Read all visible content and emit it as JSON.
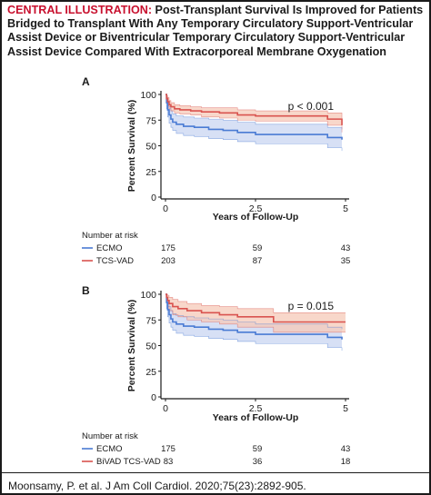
{
  "header": {
    "tag": "CENTRAL ILLUSTRATION:",
    "title": " Post-Transplant Survival Is Improved for Patients Bridged to Transplant With Any Temporary Circulatory Support-Ventricular Assist Device or Biventricular Temporary Circulatory Support-Ventricular Assist Device Compared With Extracorporeal Membrane Oxygenation"
  },
  "citation": "Moonsamy, P. et al. J Am Coll Cardiol. 2020;75(23):2892-905.",
  "colors": {
    "blue": "#4a7bd4",
    "blue_band": "#c9d6f2",
    "red": "#d9534f",
    "red_band": "#f6c9b8",
    "accent": "#c8102e"
  },
  "chart_data": [
    {
      "type": "line",
      "panel": "A",
      "annotation": "p < 0.001",
      "xlabel": "Years of Follow-Up",
      "ylabel": "Percent Survival (%)",
      "xlim": [
        0,
        5
      ],
      "ylim": [
        0,
        100
      ],
      "xticks": [
        "0",
        "2.5",
        "5"
      ],
      "yticks": [
        "0",
        "25",
        "50",
        "75",
        "100"
      ],
      "series": [
        {
          "name": "ECMO",
          "color": "#4a7bd4",
          "x": [
            0,
            0.03,
            0.06,
            0.1,
            0.15,
            0.2,
            0.3,
            0.5,
            0.8,
            1.2,
            1.6,
            2.0,
            2.5,
            3.5,
            4.5,
            4.9
          ],
          "y": [
            100,
            92,
            85,
            80,
            76,
            73,
            71,
            69,
            68,
            66,
            65,
            63,
            61,
            61,
            58,
            56
          ],
          "lower": [
            100,
            86,
            78,
            72,
            68,
            65,
            62,
            60,
            59,
            57,
            56,
            54,
            52,
            52,
            48,
            45
          ],
          "upper": [
            100,
            97,
            92,
            88,
            84,
            81,
            79,
            78,
            77,
            76,
            75,
            73,
            71,
            71,
            68,
            66
          ]
        },
        {
          "name": "TCS-VAD",
          "color": "#d9534f",
          "x": [
            0,
            0.03,
            0.06,
            0.1,
            0.15,
            0.25,
            0.4,
            0.7,
            1.0,
            1.5,
            2.0,
            2.5,
            3.5,
            4.5,
            4.9
          ],
          "y": [
            100,
            96,
            93,
            90,
            88,
            86,
            85,
            84,
            83,
            82,
            80,
            79,
            79,
            76,
            70
          ],
          "lower": [
            100,
            93,
            89,
            86,
            84,
            82,
            81,
            80,
            78,
            77,
            75,
            74,
            74,
            70,
            63
          ],
          "upper": [
            100,
            99,
            97,
            94,
            92,
            90,
            89,
            88,
            87,
            87,
            85,
            84,
            84,
            82,
            77
          ]
        }
      ],
      "risk_table": {
        "title": "Number at risk",
        "times": [
          "0",
          "2.5",
          "5"
        ],
        "rows": [
          {
            "name": "ECMO",
            "values": [
              "175",
              "59",
              "43"
            ]
          },
          {
            "name": "TCS-VAD",
            "values": [
              "203",
              "87",
              "35"
            ]
          }
        ]
      }
    },
    {
      "type": "line",
      "panel": "B",
      "annotation": "p = 0.015",
      "xlabel": "Years of Follow-Up",
      "ylabel": "Percent Survival (%)",
      "xlim": [
        0,
        5
      ],
      "ylim": [
        0,
        100
      ],
      "xticks": [
        "0",
        "2.5",
        "5"
      ],
      "yticks": [
        "0",
        "25",
        "50",
        "75",
        "100"
      ],
      "series": [
        {
          "name": "ECMO",
          "color": "#4a7bd4",
          "x": [
            0,
            0.03,
            0.06,
            0.1,
            0.15,
            0.2,
            0.3,
            0.5,
            0.8,
            1.2,
            1.6,
            2.0,
            2.5,
            3.5,
            4.5,
            4.9
          ],
          "y": [
            100,
            92,
            85,
            80,
            76,
            73,
            71,
            69,
            68,
            66,
            65,
            63,
            61,
            61,
            58,
            56
          ],
          "lower": [
            100,
            86,
            78,
            72,
            68,
            65,
            62,
            60,
            59,
            57,
            56,
            54,
            52,
            52,
            48,
            45
          ],
          "upper": [
            100,
            97,
            92,
            88,
            84,
            81,
            79,
            78,
            77,
            76,
            75,
            73,
            71,
            71,
            68,
            66
          ]
        },
        {
          "name": "BiVAD TCS-VAD",
          "color": "#d9534f",
          "x": [
            0,
            0.03,
            0.06,
            0.1,
            0.2,
            0.35,
            0.6,
            1.0,
            1.5,
            2.0,
            3.0,
            4.0,
            5.0
          ],
          "y": [
            100,
            97,
            94,
            91,
            88,
            86,
            84,
            82,
            80,
            78,
            73,
            73,
            73
          ],
          "lower": [
            100,
            92,
            88,
            84,
            80,
            78,
            75,
            73,
            71,
            68,
            63,
            63,
            63
          ],
          "upper": [
            100,
            100,
            99,
            97,
            95,
            93,
            91,
            89,
            88,
            86,
            82,
            82,
            82
          ]
        }
      ],
      "risk_table": {
        "title": "Number at risk",
        "times": [
          "0",
          "2.5",
          "5"
        ],
        "rows": [
          {
            "name": "ECMO",
            "values": [
              "175",
              "59",
              "43"
            ]
          },
          {
            "name": "BiVAD TCS-VAD",
            "values": [
              "83",
              "36",
              "18"
            ]
          }
        ]
      }
    }
  ]
}
